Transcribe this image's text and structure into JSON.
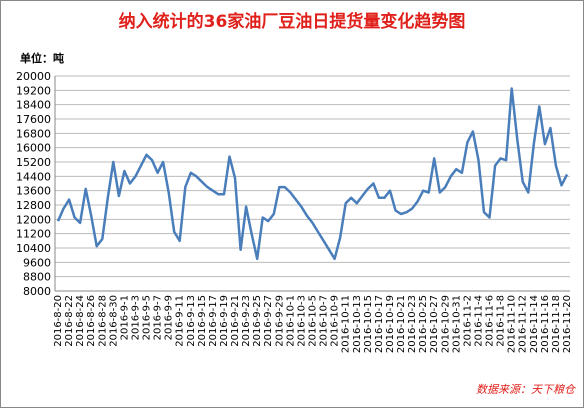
{
  "chart_data": {
    "type": "line",
    "title": "纳入统计的36家油厂豆油日提货量变化趋势图",
    "unit_label": "单位：吨",
    "source": "数据来源：天下粮仓",
    "color": "#4a7ebb",
    "grid": true,
    "categories": [
      "2016-8-20",
      null,
      "2016-8-22",
      null,
      "2016-8-24",
      null,
      "2016-8-26",
      null,
      "2016-8-28",
      null,
      "2016-8-30",
      null,
      "2016-9-1",
      null,
      "2016-9-3",
      null,
      "2016-9-5",
      null,
      "2016-9-7",
      null,
      "2016-9-9",
      null,
      "2016-9-11",
      null,
      "2016-9-13",
      null,
      "2016-9-15",
      null,
      "2016-9-17",
      null,
      "2016-9-19",
      null,
      "2016-9-21",
      null,
      "2016-9-23",
      null,
      "2016-9-25",
      null,
      "2016-9-27",
      null,
      "2016-9-29",
      null,
      "2016-10-1",
      null,
      "2016-10-3",
      null,
      "2016-10-5",
      null,
      "2016-10-7",
      null,
      "2016-10-9",
      null,
      "2016-10-11",
      null,
      "2016-10-13",
      null,
      "2016-10-15",
      null,
      "2016-10-17",
      null,
      "2016-10-19",
      null,
      "2016-10-21",
      null,
      "2016-10-23",
      null,
      "2016-10-25",
      null,
      "2016-10-27",
      null,
      "2016-10-29",
      null,
      "2016-10-31",
      null,
      "2016-11-2",
      null,
      "2016-11-4",
      null,
      "2016-11-6",
      null,
      "2016-11-8",
      null,
      "2016-11-10",
      null,
      "2016-11-12",
      null,
      "2016-11-14",
      null,
      "2016-11-16",
      null,
      "2016-11-18",
      null,
      "2016-11-20"
    ],
    "values": [
      11900,
      12600,
      13100,
      12100,
      11800,
      13700,
      12200,
      10500,
      10900,
      13200,
      15200,
      13300,
      14700,
      14000,
      14400,
      15000,
      15600,
      15300,
      14600,
      15200,
      13500,
      11300,
      10800,
      13800,
      14600,
      14400,
      14100,
      13800,
      13600,
      13400,
      13400,
      15500,
      14300,
      10300,
      12700,
      11200,
      9800,
      12100,
      11900,
      12300,
      13800,
      13800,
      13500,
      13100,
      12700,
      12200,
      11800,
      11300,
      10800,
      10300,
      9800,
      11000,
      12900,
      13200,
      12900,
      13300,
      13700,
      14000,
      13200,
      13200,
      13600,
      12500,
      12300,
      12400,
      12600,
      13000,
      13600,
      13500,
      15400,
      13500,
      13800,
      14400,
      14800,
      14600,
      16300,
      16900,
      15300,
      12400,
      12100,
      15000,
      15400,
      15300,
      19300,
      16500,
      14100,
      13500,
      16200,
      18300,
      16200,
      17100,
      15000,
      13900,
      14500
    ],
    "ylim": [
      8000,
      20000
    ],
    "yticks": [
      8000,
      8800,
      9600,
      10400,
      11200,
      12000,
      12800,
      13600,
      14400,
      15200,
      16000,
      16800,
      17600,
      18400,
      19200,
      20000
    ]
  }
}
